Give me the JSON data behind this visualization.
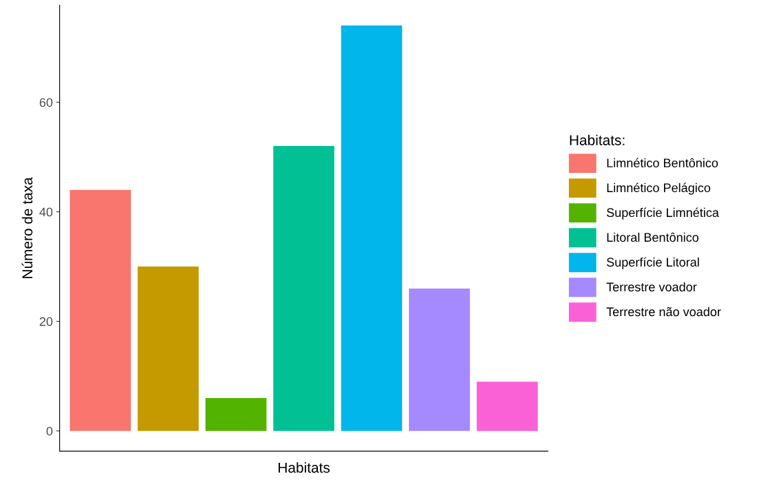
{
  "chart_data": {
    "type": "bar",
    "xlabel": "Habitats",
    "ylabel": "Número de taxa",
    "legend_title": "Habitats:",
    "categories": [
      null,
      null,
      null,
      null,
      null,
      null,
      null
    ],
    "series": [
      {
        "name": "Limnético Bentônico",
        "color": "#f8766d",
        "values": [
          44,
          null,
          null,
          null,
          null,
          null,
          null
        ]
      },
      {
        "name": "Limnético Pelágico",
        "color": "#c49a00",
        "values": [
          null,
          30,
          null,
          null,
          null,
          null,
          null
        ]
      },
      {
        "name": "Superfície Limnética",
        "color": "#53b400",
        "values": [
          null,
          null,
          6,
          null,
          null,
          null,
          null
        ]
      },
      {
        "name": "Litoral Bentônico",
        "color": "#00c094",
        "values": [
          null,
          null,
          null,
          52,
          null,
          null,
          null
        ]
      },
      {
        "name": "Superfície Litoral",
        "color": "#00b6eb",
        "values": [
          null,
          null,
          null,
          null,
          74,
          null,
          null
        ]
      },
      {
        "name": "Terrestre voador",
        "color": "#a58aff",
        "values": [
          null,
          null,
          null,
          null,
          null,
          26,
          null
        ]
      },
      {
        "name": "Terrestre não voador",
        "color": "#fb61d7",
        "values": [
          null,
          null,
          null,
          null,
          null,
          null,
          9
        ]
      }
    ],
    "ylim": [
      -3.7,
      77.7
    ],
    "yticks": [
      0,
      20,
      40,
      60
    ],
    "grid": false,
    "legend": "right"
  }
}
